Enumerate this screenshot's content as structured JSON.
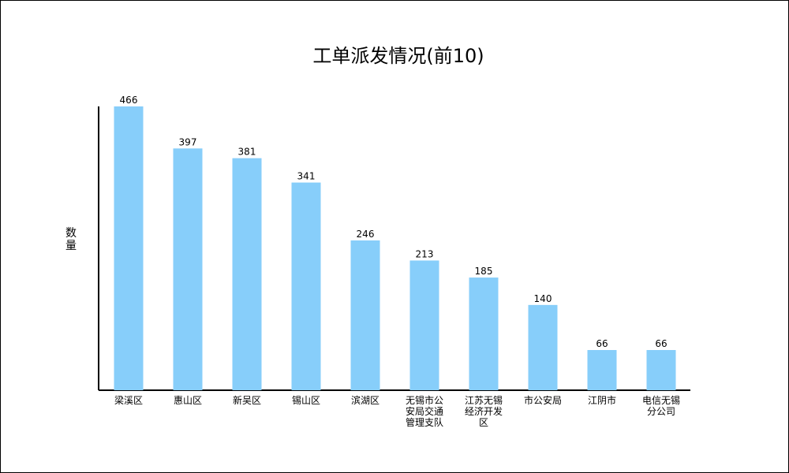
{
  "chart_data": {
    "type": "bar",
    "title": "工单派发情况(前10)",
    "xlabel": "",
    "ylabel": "数量",
    "categories": [
      [
        "梁溪区"
      ],
      [
        "惠山区"
      ],
      [
        "新吴区"
      ],
      [
        "锡山区"
      ],
      [
        "滨湖区"
      ],
      [
        "无锡市公",
        "安局交通",
        "管理支队"
      ],
      [
        "江苏无锡",
        "经济开发",
        "区"
      ],
      [
        "市公安局"
      ],
      [
        "江阴市"
      ],
      [
        "电信无锡",
        "分公司"
      ]
    ],
    "values": [
      466,
      397,
      381,
      341,
      246,
      213,
      185,
      140,
      66,
      66
    ],
    "ylim": [
      0,
      466
    ],
    "grid": false,
    "legend": "none",
    "colors": {
      "bar": "#87CEFA",
      "axis": "#000000",
      "text": "#000000"
    }
  }
}
